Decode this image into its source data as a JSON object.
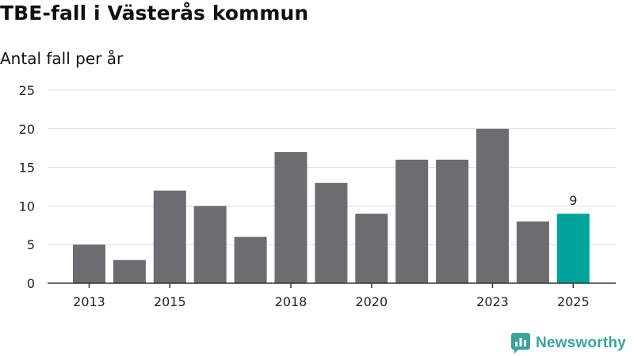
{
  "header": {
    "title": "TBE-fall i Västerås kommun",
    "subtitle": "Antal fall per år"
  },
  "branding": {
    "logo_text": "Newsworthy",
    "logo_color": "#3aa39a"
  },
  "colors": {
    "bar": "#6d6c71",
    "highlight": "#00a39b",
    "grid": "#dddddd",
    "axis": "#333333",
    "text": "#222222"
  },
  "chart_data": {
    "type": "bar",
    "title": "TBE-fall i Västerås kommun",
    "subtitle": "Antal fall per år",
    "xlabel": "",
    "ylabel": "Antal fall per år",
    "categories": [
      "2013",
      "2014",
      "2015",
      "2016",
      "2017",
      "2018",
      "2019",
      "2020",
      "2021",
      "2022",
      "2023",
      "2024",
      "2025"
    ],
    "values": [
      5,
      3,
      12,
      10,
      6,
      17,
      13,
      9,
      16,
      16,
      20,
      8,
      9
    ],
    "x_tick_labels": [
      "2013",
      "2015",
      "2018",
      "2020",
      "2023",
      "2025"
    ],
    "y_ticks": [
      0,
      5,
      10,
      15,
      20,
      25
    ],
    "ylim": [
      0,
      25
    ],
    "grid": true,
    "highlight_category": "2025",
    "data_labels": [
      {
        "category": "2025",
        "text": "9"
      }
    ],
    "legend": "none"
  }
}
